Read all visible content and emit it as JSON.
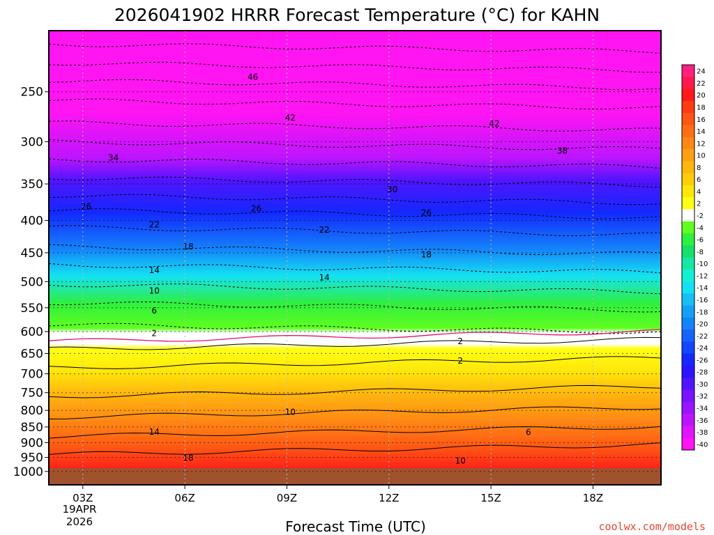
{
  "chart_data": {
    "type": "heatmap",
    "title": "2026041902 HRRR Forecast Temperature (°C) for KAHN",
    "xlabel": "Forecast Time (UTC)",
    "ylabel": "",
    "credit": "coolwx.com/models",
    "x_ticks": [
      "03Z",
      "06Z",
      "09Z",
      "12Z",
      "15Z",
      "18Z"
    ],
    "x_tick_values": [
      3,
      6,
      9,
      12,
      15,
      18
    ],
    "x_date_lines": [
      "19APR",
      "2026"
    ],
    "xlim": [
      2,
      20
    ],
    "y_ticks": [
      250,
      300,
      350,
      400,
      450,
      500,
      550,
      600,
      650,
      700,
      750,
      800,
      850,
      900,
      950,
      1000
    ],
    "ylim": [
      1050,
      200
    ],
    "y_axis": "pressure (hPa), inverted",
    "colorbar": {
      "ticks": [
        24,
        22,
        20,
        18,
        16,
        14,
        12,
        10,
        8,
        6,
        4,
        2,
        -2,
        -4,
        -6,
        -8,
        -10,
        -12,
        -14,
        -16,
        -18,
        -20,
        -22,
        -24,
        -26,
        -28,
        -30,
        -32,
        -34,
        -36,
        -38,
        -40
      ],
      "colors": [
        "#ff1f7f",
        "#ff1a4d",
        "#ff1a1a",
        "#ff3b14",
        "#ff5514",
        "#ff6e14",
        "#ff8714",
        "#ffa014",
        "#ffb60f",
        "#ffcd0a",
        "#ffe60a",
        "#ffff14",
        "#ffffff",
        "#5fff1f",
        "#2fef3f",
        "#14e06a",
        "#14e8a4",
        "#14f0d4",
        "#14e2f2",
        "#14c0f4",
        "#14a0f6",
        "#1482fa",
        "#1464fc",
        "#1446fe",
        "#1428ff",
        "#2b14ff",
        "#5014ff",
        "#7814ff",
        "#9a14ff",
        "#bd14ff",
        "#e014ff",
        "#ff14f2"
      ]
    },
    "contour_labels": [
      {
        "text": "46",
        "x": 8.0,
        "p": 237
      },
      {
        "text": "42",
        "x": 9.1,
        "p": 275
      },
      {
        "text": "42",
        "x": 15.1,
        "p": 281
      },
      {
        "text": "34",
        "x": 3.9,
        "p": 318
      },
      {
        "text": "38",
        "x": 17.1,
        "p": 310
      },
      {
        "text": "30",
        "x": 12.1,
        "p": 357
      },
      {
        "text": "26",
        "x": 3.1,
        "p": 380
      },
      {
        "text": "26",
        "x": 8.1,
        "p": 383
      },
      {
        "text": "26",
        "x": 13.1,
        "p": 389
      },
      {
        "text": "22",
        "x": 5.1,
        "p": 406
      },
      {
        "text": "22",
        "x": 10.1,
        "p": 414
      },
      {
        "text": "18",
        "x": 6.1,
        "p": 440
      },
      {
        "text": "18",
        "x": 13.1,
        "p": 453
      },
      {
        "text": "14",
        "x": 5.1,
        "p": 480
      },
      {
        "text": "14",
        "x": 10.1,
        "p": 493
      },
      {
        "text": "10",
        "x": 5.1,
        "p": 517
      },
      {
        "text": "6",
        "x": 5.1,
        "p": 556
      },
      {
        "text": "2",
        "x": 5.1,
        "p": 604
      },
      {
        "text": "2",
        "x": 14.1,
        "p": 622
      },
      {
        "text": "2",
        "x": 14.1,
        "p": 668
      },
      {
        "text": "10",
        "x": 9.1,
        "p": 805
      },
      {
        "text": "14",
        "x": 5.1,
        "p": 865
      },
      {
        "text": "18",
        "x": 6.1,
        "p": 952
      },
      {
        "text": "6",
        "x": 16.1,
        "p": 867
      },
      {
        "text": "10",
        "x": 14.1,
        "p": 962
      }
    ],
    "annotations": [
      "2026041902 run",
      "station KAHN"
    ]
  }
}
